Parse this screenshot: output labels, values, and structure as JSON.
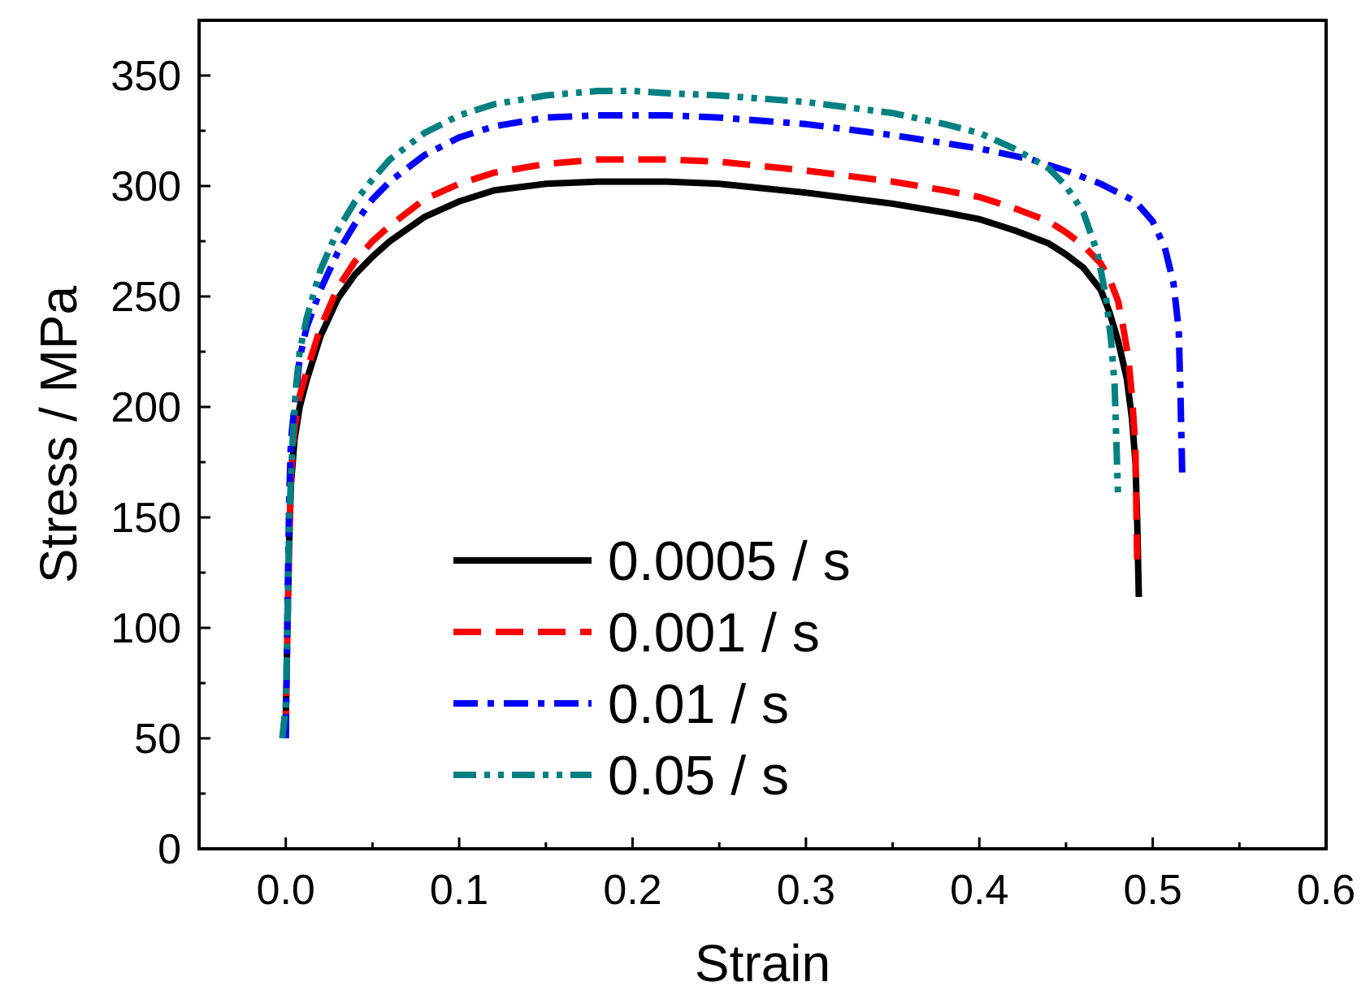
{
  "chart_data": {
    "type": "line",
    "title": "",
    "xlabel": "Strain",
    "ylabel": "Stress / MPa",
    "xlim": [
      -0.05,
      0.6
    ],
    "ylim": [
      0,
      375
    ],
    "x_ticks": [
      0.0,
      0.1,
      0.2,
      0.3,
      0.4,
      0.5,
      0.6
    ],
    "x_tick_labels": [
      "0.0",
      "0.1",
      "0.2",
      "0.3",
      "0.4",
      "0.5",
      "0.6"
    ],
    "x_minor_ticks": [
      -0.05,
      0.05,
      0.15,
      0.25,
      0.35,
      0.45,
      0.55
    ],
    "y_ticks": [
      0,
      50,
      100,
      150,
      200,
      250,
      300,
      350
    ],
    "y_tick_labels": [
      "0",
      "50",
      "100",
      "150",
      "200",
      "250",
      "300",
      "350"
    ],
    "y_minor_ticks": [
      25,
      75,
      125,
      175,
      225,
      275,
      325
    ],
    "grid": false,
    "legend_position": "bottom-center",
    "series": [
      {
        "name": "0.0005 / s",
        "color": "#000000",
        "dash": "solid",
        "x": [
          0.0,
          0.001,
          0.002,
          0.003,
          0.005,
          0.008,
          0.012,
          0.02,
          0.03,
          0.04,
          0.05,
          0.06,
          0.08,
          0.1,
          0.12,
          0.15,
          0.18,
          0.2,
          0.22,
          0.25,
          0.3,
          0.35,
          0.38,
          0.4,
          0.42,
          0.44,
          0.45,
          0.46,
          0.47,
          0.475,
          0.48,
          0.485,
          0.488,
          0.49,
          0.491,
          0.492
        ],
        "y": [
          60,
          100,
          140,
          165,
          185,
          200,
          212,
          232,
          249,
          260,
          268,
          275,
          286,
          293,
          298,
          301,
          302,
          302,
          302,
          301,
          297,
          292,
          288,
          285,
          280,
          274,
          269,
          263,
          253,
          243,
          230,
          213,
          195,
          175,
          150,
          114
        ]
      },
      {
        "name": "0.001 / s",
        "color": "#ff0000",
        "dash": "dashed",
        "x": [
          0.0,
          0.001,
          0.002,
          0.003,
          0.005,
          0.008,
          0.012,
          0.02,
          0.03,
          0.04,
          0.05,
          0.06,
          0.08,
          0.1,
          0.12,
          0.15,
          0.18,
          0.2,
          0.22,
          0.25,
          0.3,
          0.35,
          0.38,
          0.4,
          0.42,
          0.44,
          0.45,
          0.46,
          0.47,
          0.475,
          0.48,
          0.483,
          0.486,
          0.488,
          0.49,
          0.491
        ],
        "y": [
          50,
          100,
          140,
          170,
          190,
          205,
          216,
          236,
          254,
          266,
          275,
          282,
          294,
          301,
          306,
          310,
          312,
          312,
          312,
          311,
          307,
          302,
          298,
          295,
          290,
          284,
          279,
          273,
          265,
          258,
          248,
          236,
          222,
          205,
          182,
          131
        ]
      },
      {
        "name": "0.01 / s",
        "color": "#0000ff",
        "dash": "dashdot",
        "x": [
          0.0,
          0.001,
          0.002,
          0.003,
          0.005,
          0.008,
          0.012,
          0.02,
          0.03,
          0.04,
          0.05,
          0.06,
          0.08,
          0.1,
          0.12,
          0.15,
          0.18,
          0.2,
          0.22,
          0.25,
          0.3,
          0.35,
          0.4,
          0.43,
          0.45,
          0.47,
          0.49,
          0.5,
          0.507,
          0.512,
          0.515,
          0.516,
          0.517
        ],
        "y": [
          50,
          110,
          160,
          185,
          200,
          222,
          236,
          253,
          270,
          283,
          294,
          302,
          314,
          322,
          327,
          331,
          332,
          332,
          332,
          331,
          328,
          323,
          317,
          312,
          307,
          301,
          293,
          284,
          272,
          256,
          235,
          205,
          170
        ]
      },
      {
        "name": "0.05 / s",
        "color": "#008080",
        "dash": "dashdotdot",
        "x": [
          -0.002,
          0.0,
          0.001,
          0.002,
          0.004,
          0.006,
          0.008,
          0.012,
          0.02,
          0.03,
          0.04,
          0.05,
          0.06,
          0.08,
          0.1,
          0.12,
          0.15,
          0.18,
          0.2,
          0.22,
          0.25,
          0.3,
          0.35,
          0.38,
          0.4,
          0.42,
          0.44,
          0.45,
          0.46,
          0.468,
          0.473,
          0.476,
          0.478,
          0.479,
          0.48
        ],
        "y": [
          50,
          65,
          100,
          150,
          185,
          210,
          225,
          240,
          262,
          280,
          293,
          303,
          312,
          324,
          332,
          337,
          341,
          343,
          343,
          342,
          341,
          338,
          333,
          328,
          324,
          317,
          308,
          300,
          288,
          270,
          250,
          230,
          210,
          185,
          160
        ]
      }
    ]
  }
}
